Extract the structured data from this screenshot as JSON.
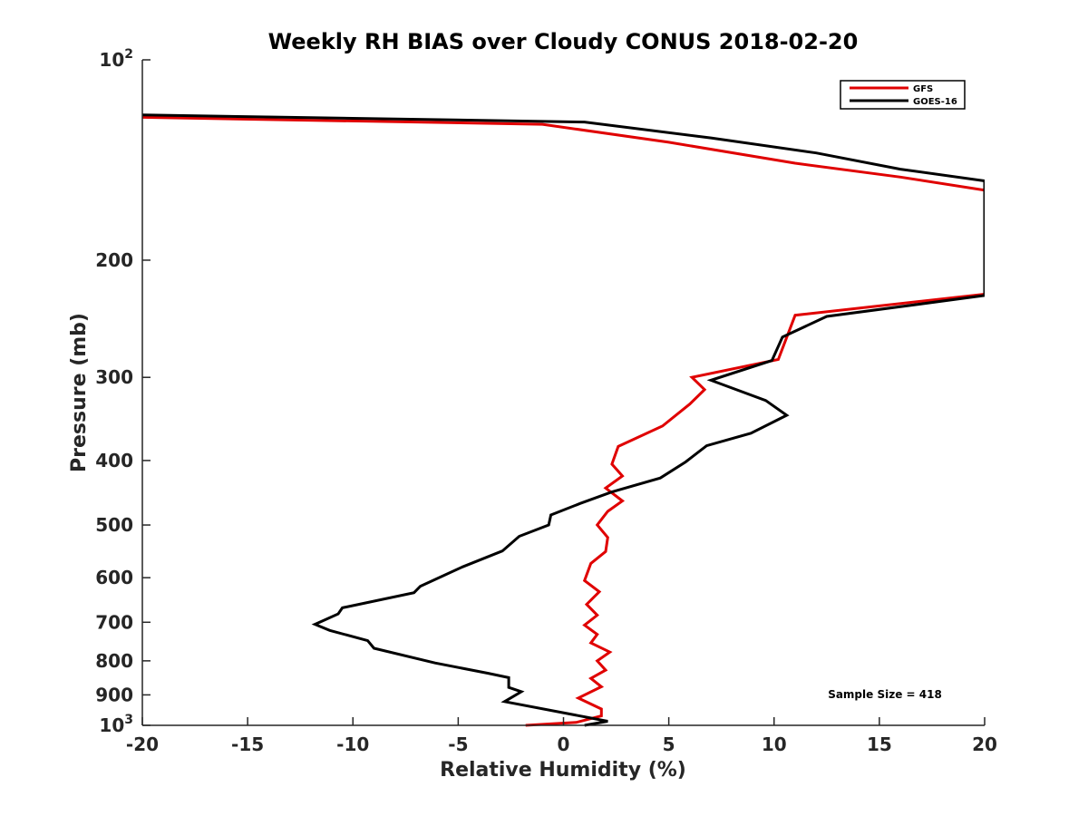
{
  "chart_data": {
    "type": "line",
    "title": "Weekly RH BIAS over Cloudy CONUS 2018-02-20",
    "xlabel": "Relative Humidity (%)",
    "ylabel": "Pressure (mb)",
    "xlim": [
      -20,
      20
    ],
    "ylim": [
      1000,
      100
    ],
    "y_scale": "log",
    "x_ticks": [
      -20,
      -15,
      -10,
      -5,
      0,
      5,
      10,
      15,
      20
    ],
    "x_tick_labels": [
      "-20",
      "-15",
      "-10",
      "-5",
      "0",
      "5",
      "10",
      "15",
      "20"
    ],
    "y_ticks": [
      {
        "value": 100,
        "label": "10",
        "sup": "2"
      },
      {
        "value": 200,
        "label": "200",
        "sup": ""
      },
      {
        "value": 300,
        "label": "300",
        "sup": ""
      },
      {
        "value": 400,
        "label": "400",
        "sup": ""
      },
      {
        "value": 500,
        "label": "500",
        "sup": ""
      },
      {
        "value": 600,
        "label": "600",
        "sup": ""
      },
      {
        "value": 700,
        "label": "700",
        "sup": ""
      },
      {
        "value": 800,
        "label": "800",
        "sup": ""
      },
      {
        "value": 900,
        "label": "900",
        "sup": ""
      },
      {
        "value": 1000,
        "label": "10",
        "sup": "3"
      }
    ],
    "legend_position": "top-right",
    "annotation": "Sample Size = 418",
    "series": [
      {
        "name": "GFS",
        "color": "#e00000",
        "points": [
          [
            -20,
            122
          ],
          [
            -1,
            125
          ],
          [
            5,
            133
          ],
          [
            11,
            143
          ],
          [
            16,
            150
          ],
          [
            20,
            157
          ],
          [
            20,
            225
          ],
          [
            11,
            242
          ],
          [
            10.2,
            282
          ],
          [
            6.1,
            300
          ],
          [
            6.7,
            313
          ],
          [
            6.0,
            329
          ],
          [
            4.7,
            355
          ],
          [
            2.6,
            381
          ],
          [
            2.3,
            405
          ],
          [
            2.8,
            422
          ],
          [
            2.0,
            440
          ],
          [
            2.8,
            460
          ],
          [
            2.1,
            477
          ],
          [
            1.6,
            500
          ],
          [
            2.1,
            522
          ],
          [
            2.0,
            548
          ],
          [
            1.3,
            571
          ],
          [
            1.0,
            606
          ],
          [
            1.7,
            630
          ],
          [
            1.1,
            658
          ],
          [
            1.6,
            683
          ],
          [
            1.0,
            707
          ],
          [
            1.6,
            730
          ],
          [
            1.3,
            752
          ],
          [
            2.2,
            776
          ],
          [
            1.6,
            800
          ],
          [
            2.0,
            826
          ],
          [
            1.3,
            850
          ],
          [
            1.8,
            875
          ],
          [
            0.7,
            910
          ],
          [
            1.8,
            945
          ],
          [
            1.8,
            968
          ],
          [
            0.6,
            990
          ],
          [
            -1.8,
            1000
          ]
        ]
      },
      {
        "name": "GOES-16",
        "color": "#000000",
        "points": [
          [
            -20,
            121
          ],
          [
            1,
            124
          ],
          [
            7,
            131
          ],
          [
            12,
            138
          ],
          [
            16,
            146
          ],
          [
            20,
            152
          ],
          [
            20,
            226
          ],
          [
            12.5,
            243
          ],
          [
            10.4,
            261
          ],
          [
            9.9,
            283
          ],
          [
            7.0,
            303
          ],
          [
            9.6,
            325
          ],
          [
            10.6,
            342
          ],
          [
            8.9,
            364
          ],
          [
            6.8,
            380
          ],
          [
            5.8,
            402
          ],
          [
            4.6,
            425
          ],
          [
            2.3,
            446
          ],
          [
            0.8,
            464
          ],
          [
            -0.6,
            483
          ],
          [
            -0.7,
            500
          ],
          [
            -2.1,
            520
          ],
          [
            -2.9,
            547
          ],
          [
            -4.8,
            578
          ],
          [
            -6.8,
            618
          ],
          [
            -7.1,
            632
          ],
          [
            -10.5,
            666
          ],
          [
            -10.7,
            680
          ],
          [
            -11.8,
            705
          ],
          [
            -11.1,
            720
          ],
          [
            -9.3,
            746
          ],
          [
            -9.0,
            766
          ],
          [
            -6.1,
            806
          ],
          [
            -3.6,
            835
          ],
          [
            -2.6,
            848
          ],
          [
            -2.6,
            877
          ],
          [
            -2.0,
            890
          ],
          [
            -2.8,
            921
          ],
          [
            2.1,
            986
          ],
          [
            1.0,
            1000
          ]
        ]
      }
    ]
  }
}
